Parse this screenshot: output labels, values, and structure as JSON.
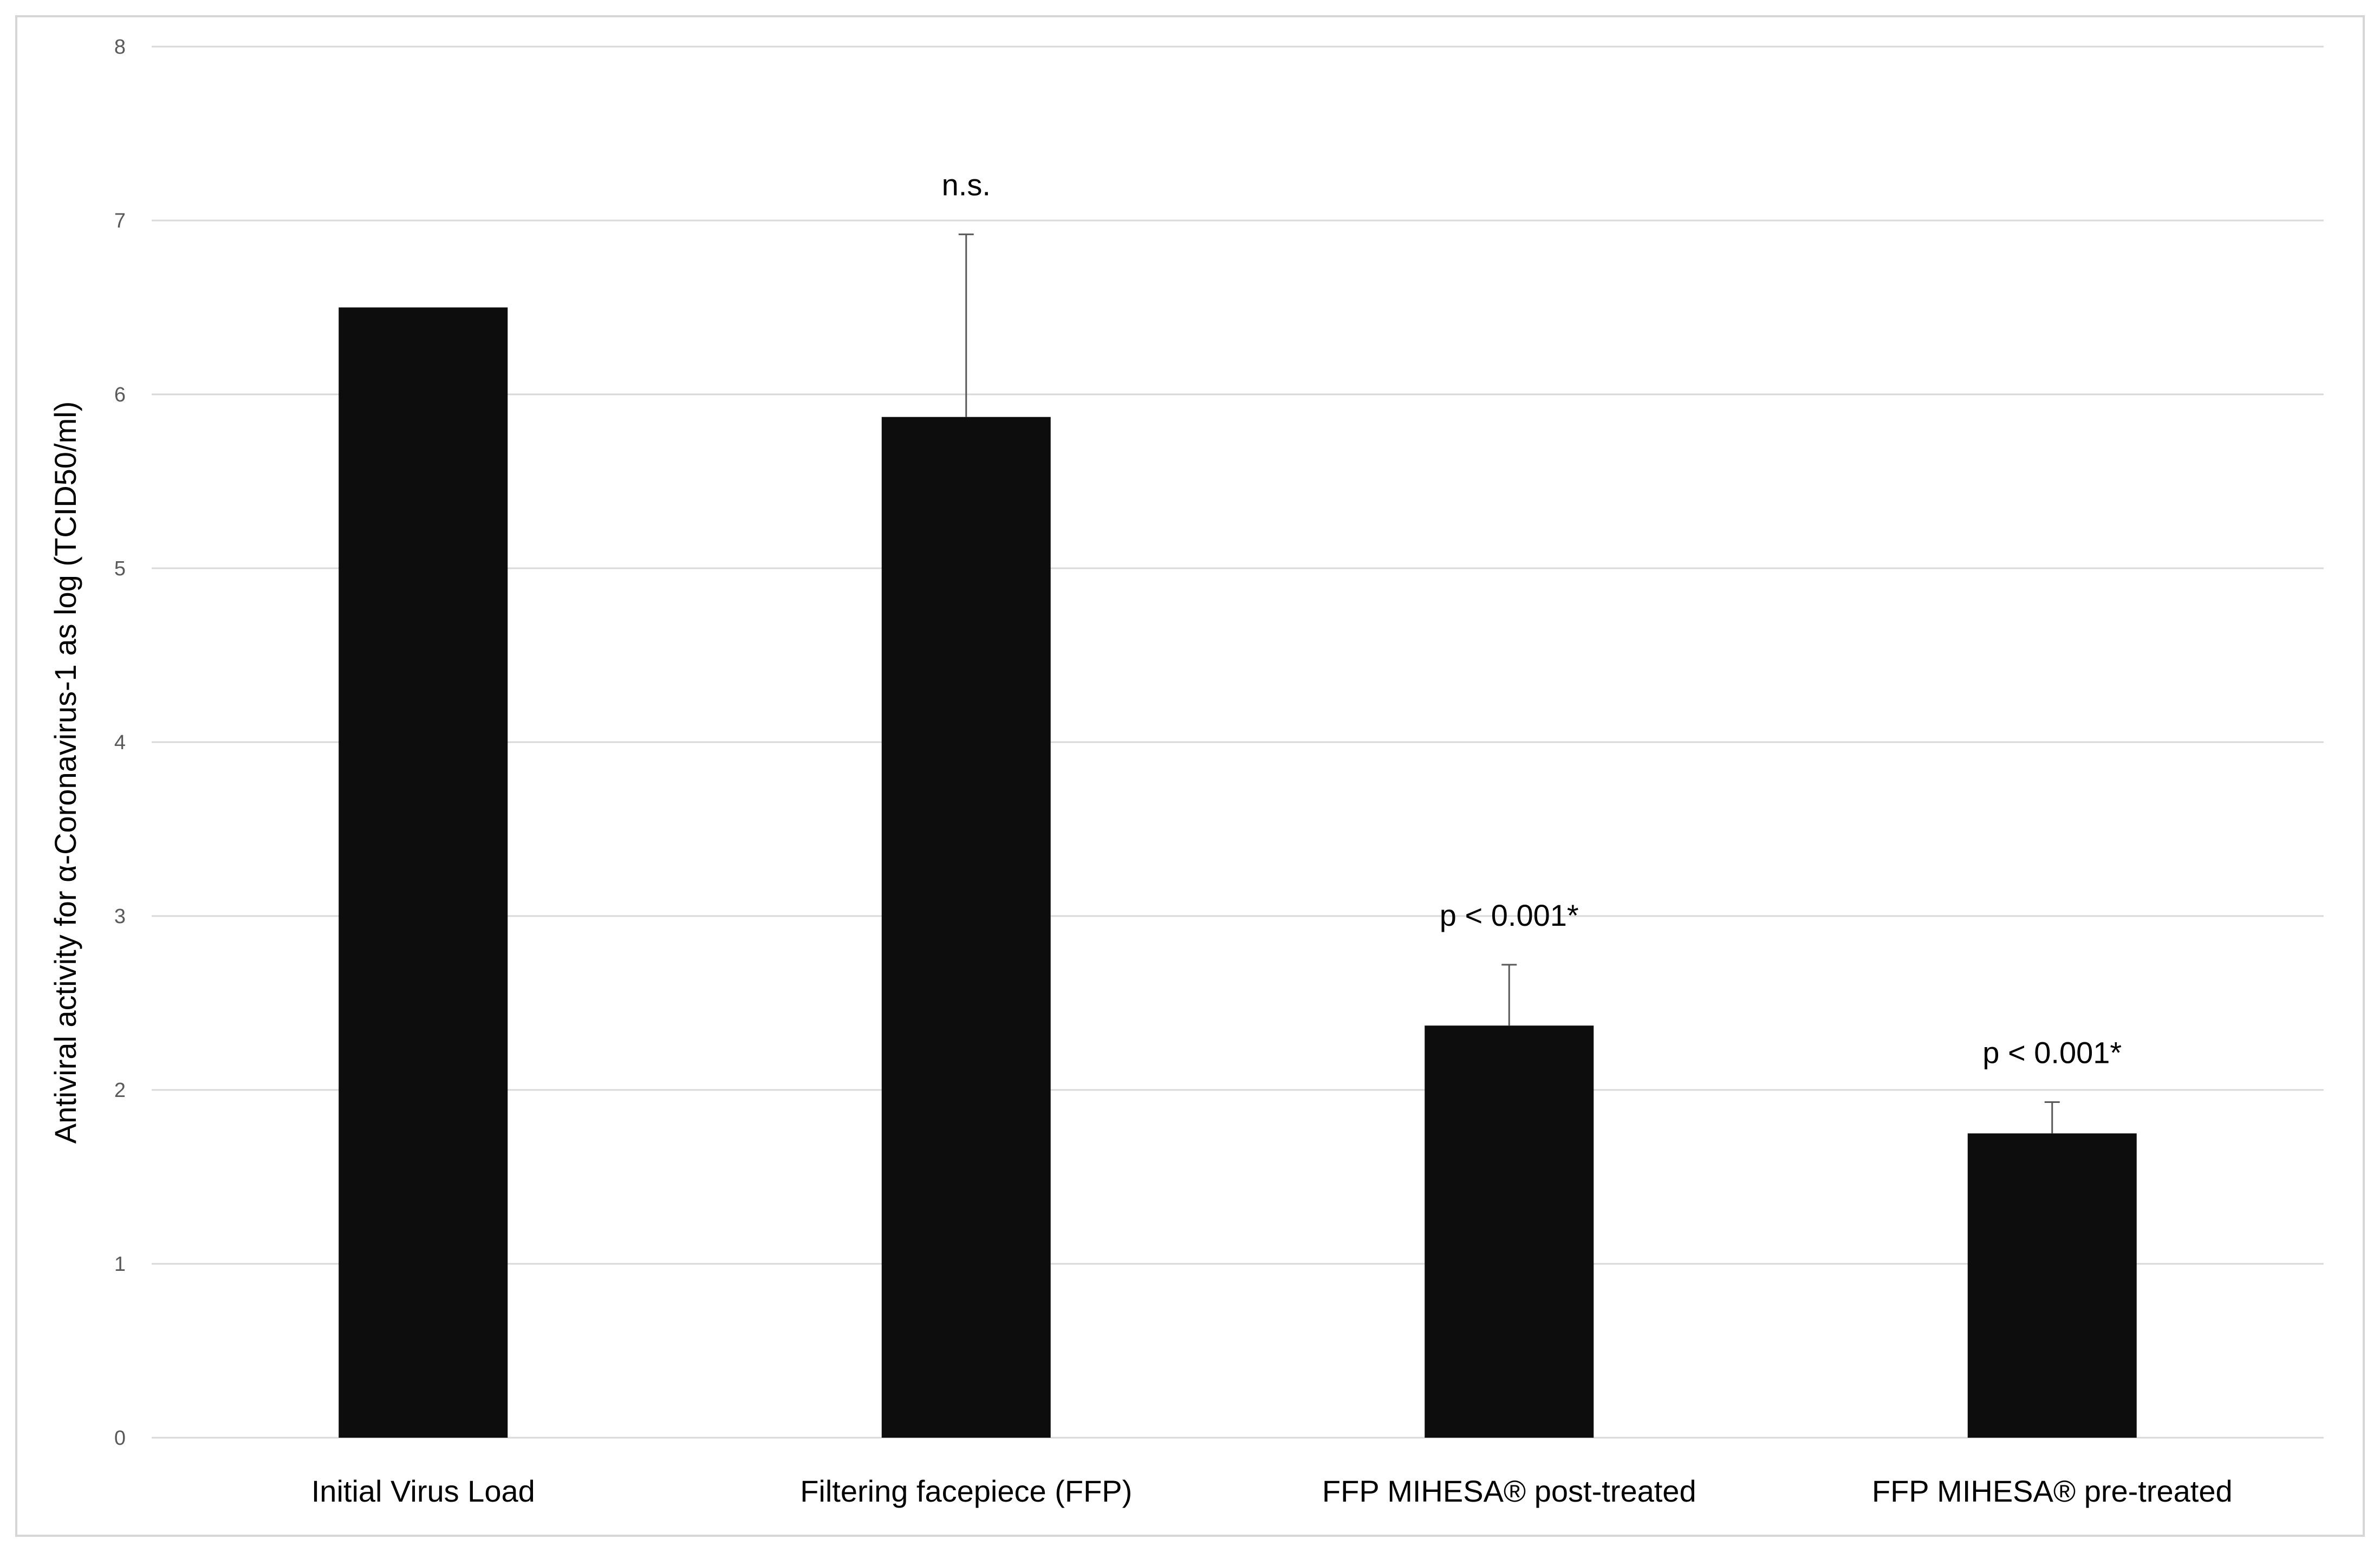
{
  "chart_data": {
    "type": "bar",
    "categories": [
      "Initial Virus Load",
      "Filtering facepiece (FFP)",
      "FFP MIHESA® post-treated",
      "FFP MIHESA® pre-treated"
    ],
    "values": [
      6.5,
      5.87,
      2.37,
      1.75
    ],
    "error_bars_upper": [
      null,
      1.05,
      0.35,
      0.18
    ],
    "annotations": [
      "",
      "n.s.",
      "p < 0.001*",
      "p < 0.001*"
    ],
    "ylabel": "Antiviral activity for α-Coronavirus-1 as log (TCID50/ml)",
    "ylim": [
      0,
      8
    ],
    "yticks": [
      "0",
      "1",
      "2",
      "3",
      "4",
      "5",
      "6",
      "7",
      "8"
    ],
    "grid": true,
    "bar_color": "#0d0d0d",
    "grid_color": "#d9d9d9"
  }
}
